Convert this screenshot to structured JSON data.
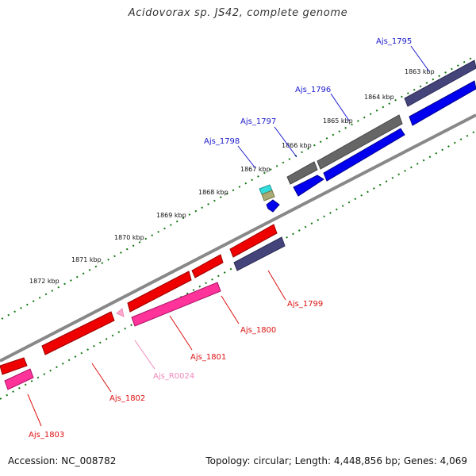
{
  "title": "Acidovorax sp. JS42, complete genome",
  "footer": {
    "accession": "Accession: NC_008782",
    "stats": "Topology: circular; Length: 4,448,856 bp; Genes: 4,069"
  },
  "kbp_labels": [
    "1863 kbp",
    "1864 kbp",
    "1865 kbp",
    "1866 kbp",
    "1867 kbp",
    "1868 kbp",
    "1869 kbp",
    "1870 kbp",
    "1871 kbp",
    "1872 kbp"
  ],
  "genes": {
    "g1795": "Ajs_1795",
    "g1796": "Ajs_1796",
    "g1797": "Ajs_1797",
    "g1798": "Ajs_1798",
    "g1799": "Ajs_1799",
    "g1800": "Ajs_1800",
    "g1801": "Ajs_1801",
    "r0024": "Ajs_R0024",
    "g1802": "Ajs_1802",
    "g1803": "Ajs_1803"
  },
  "colors": {
    "forward_label": "#1a1acc",
    "reverse_label": "#dd1111",
    "rna_label": "#ee88bb",
    "tick": "#117711",
    "backbone": "#888888",
    "cds_forward": "#0000ee",
    "cds_reverse": "#ee0000",
    "gene_forward": "#666666",
    "gene_reverse_dark": "#44447a",
    "rna": "#ff3399"
  }
}
